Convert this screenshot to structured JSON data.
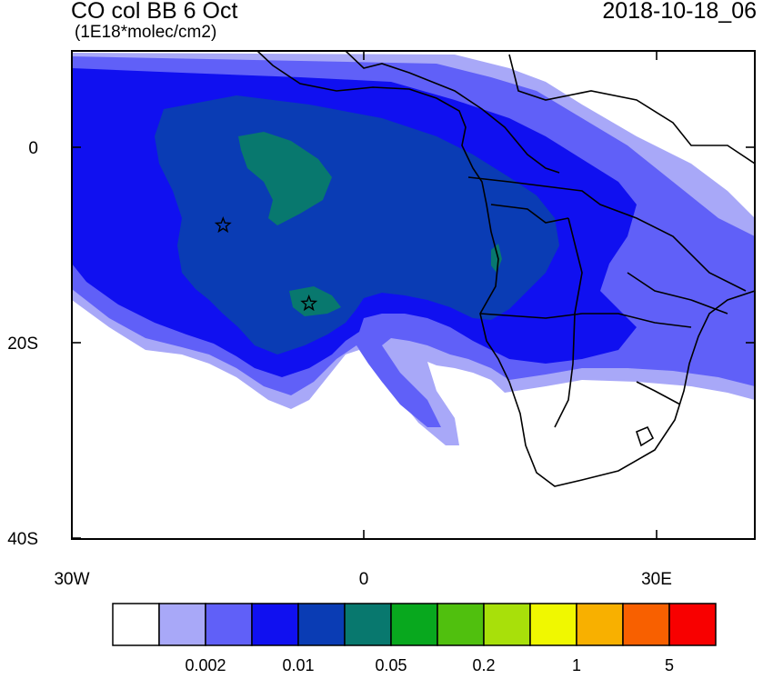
{
  "header": {
    "title": "CO col BB 6 Oct",
    "units": "(1E18*molec/cm2)",
    "datetime": "2018-10-18_06"
  },
  "axes": {
    "lat_labels": [
      "0",
      "20S",
      "40S"
    ],
    "lon_labels": [
      "30W",
      "0",
      "30E"
    ]
  },
  "colorbar": {
    "colors": [
      "#ffffff",
      "#a8a8f8",
      "#6060f8",
      "#1010f0",
      "#0a3cb4",
      "#08786e",
      "#08a81e",
      "#50c00e",
      "#a8e00a",
      "#f0f800",
      "#f8b000",
      "#f86000",
      "#f80000"
    ],
    "labels": [
      "0.002",
      "0.01",
      "0.05",
      "0.2",
      "1",
      "5"
    ]
  },
  "markers": [
    {
      "name": "star-marker-1",
      "lon": -14.5,
      "lat": -8
    },
    {
      "name": "star-marker-2",
      "lon": -5.7,
      "lat": -16
    }
  ]
}
